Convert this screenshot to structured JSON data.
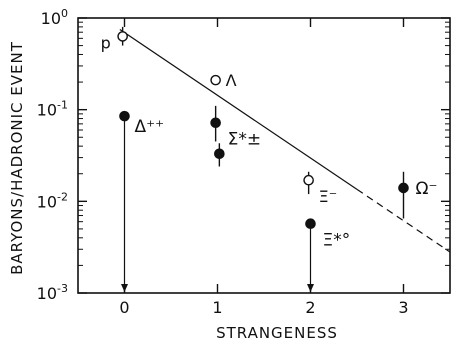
{
  "chart_data": {
    "type": "scatter",
    "title": "",
    "xlabel": "STRANGENESS",
    "ylabel": "BARYONS/HADRONIC EVENT",
    "xlim": [
      -0.5,
      3.5
    ],
    "ylim": [
      0.001,
      1
    ],
    "yscale": "log",
    "grid": false,
    "x_ticks": [
      0,
      1,
      2,
      3
    ],
    "x_tick_labels": [
      "0",
      "1",
      "2",
      "3"
    ],
    "y_ticks": [
      0.001,
      0.01,
      0.1,
      1
    ],
    "y_tick_labels": [
      {
        "base": "10",
        "exp": "-3"
      },
      {
        "base": "10",
        "exp": "-2"
      },
      {
        "base": "10",
        "exp": "-1"
      },
      {
        "base": "10",
        "exp": "0"
      }
    ],
    "series": [
      {
        "marker": "open-circle",
        "points": [
          {
            "label": "p",
            "x": -0.02,
            "y": 0.63,
            "err": [
              0.5,
              0.8
            ]
          },
          {
            "label": "Λ",
            "x": 0.98,
            "y": 0.21,
            "err": null
          },
          {
            "label": "Ξ⁻",
            "x": 1.98,
            "y": 0.017,
            "err": [
              0.012,
              0.021
            ]
          }
        ]
      },
      {
        "marker": "filled-circle",
        "points": [
          {
            "label": "Δ⁺⁺",
            "x": 0.0,
            "y": 0.085,
            "err": null,
            "upper_limit": true
          },
          {
            "label": "Σ*±",
            "x": 0.98,
            "y": 0.072,
            "err": [
              0.045,
              0.11
            ]
          },
          {
            "label": "",
            "x": 1.02,
            "y": 0.033,
            "err": [
              0.024,
              0.043
            ]
          },
          {
            "label": "Ξ*°",
            "x": 2.0,
            "y": 0.0057,
            "err": null,
            "upper_limit": true
          },
          {
            "label": "Ω⁻",
            "x": 3.0,
            "y": 0.014,
            "err": [
              0.0065,
              0.021
            ]
          }
        ]
      }
    ],
    "fit_line": {
      "solid": [
        [
          -0.05,
          0.75
        ],
        [
          2.5,
          0.0135
        ]
      ],
      "dashed": [
        [
          2.5,
          0.0135
        ],
        [
          3.5,
          0.0028
        ]
      ]
    }
  }
}
